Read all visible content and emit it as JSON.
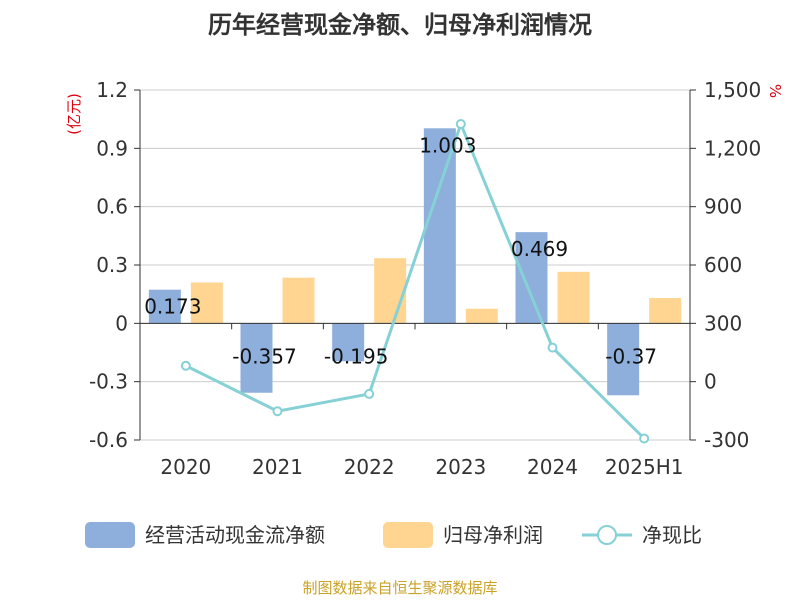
{
  "chart_data": {
    "type": "bar",
    "title": "历年经营现金净额、归母净利润情况",
    "categories": [
      "2020",
      "2021",
      "2022",
      "2023",
      "2024",
      "2025H1"
    ],
    "y_left": {
      "unit": "(亿元)",
      "ylim": [
        -0.6,
        1.2
      ],
      "ticks": [
        -0.6,
        -0.3,
        0,
        0.3,
        0.6,
        0.9,
        1.2
      ],
      "tick_labels": [
        "-0.6",
        "-0.3",
        "0",
        "0.3",
        "0.6",
        "0.9",
        "1.2"
      ]
    },
    "y_right": {
      "unit": "%",
      "ylim": [
        -300,
        1500
      ],
      "ticks": [
        -300,
        0,
        300,
        600,
        900,
        1200,
        1500
      ],
      "tick_labels": [
        "-300",
        "0",
        "300",
        "600",
        "900",
        "1,200",
        "1,500"
      ]
    },
    "series": [
      {
        "name": "经营活动现金流净额",
        "type": "bar",
        "axis": "left",
        "color": "#8eaedb",
        "values": [
          0.173,
          -0.357,
          -0.195,
          1.003,
          0.469,
          -0.37
        ],
        "labels": [
          "0.173",
          "-0.357",
          "-0.195",
          "1.003",
          "0.469",
          "-0.37"
        ]
      },
      {
        "name": "归母净利润",
        "type": "bar",
        "axis": "left",
        "color": "#ffd591",
        "values": [
          0.21,
          0.235,
          0.335,
          0.075,
          0.265,
          0.13
        ]
      },
      {
        "name": "净现比",
        "type": "line",
        "axis": "right",
        "color": "#86d1d6",
        "values": [
          82,
          -152,
          -63,
          1325,
          175,
          -292
        ]
      }
    ],
    "legend_position": "bottom",
    "grid": true
  },
  "source_text": "制图数据来自恒生聚源数据库"
}
